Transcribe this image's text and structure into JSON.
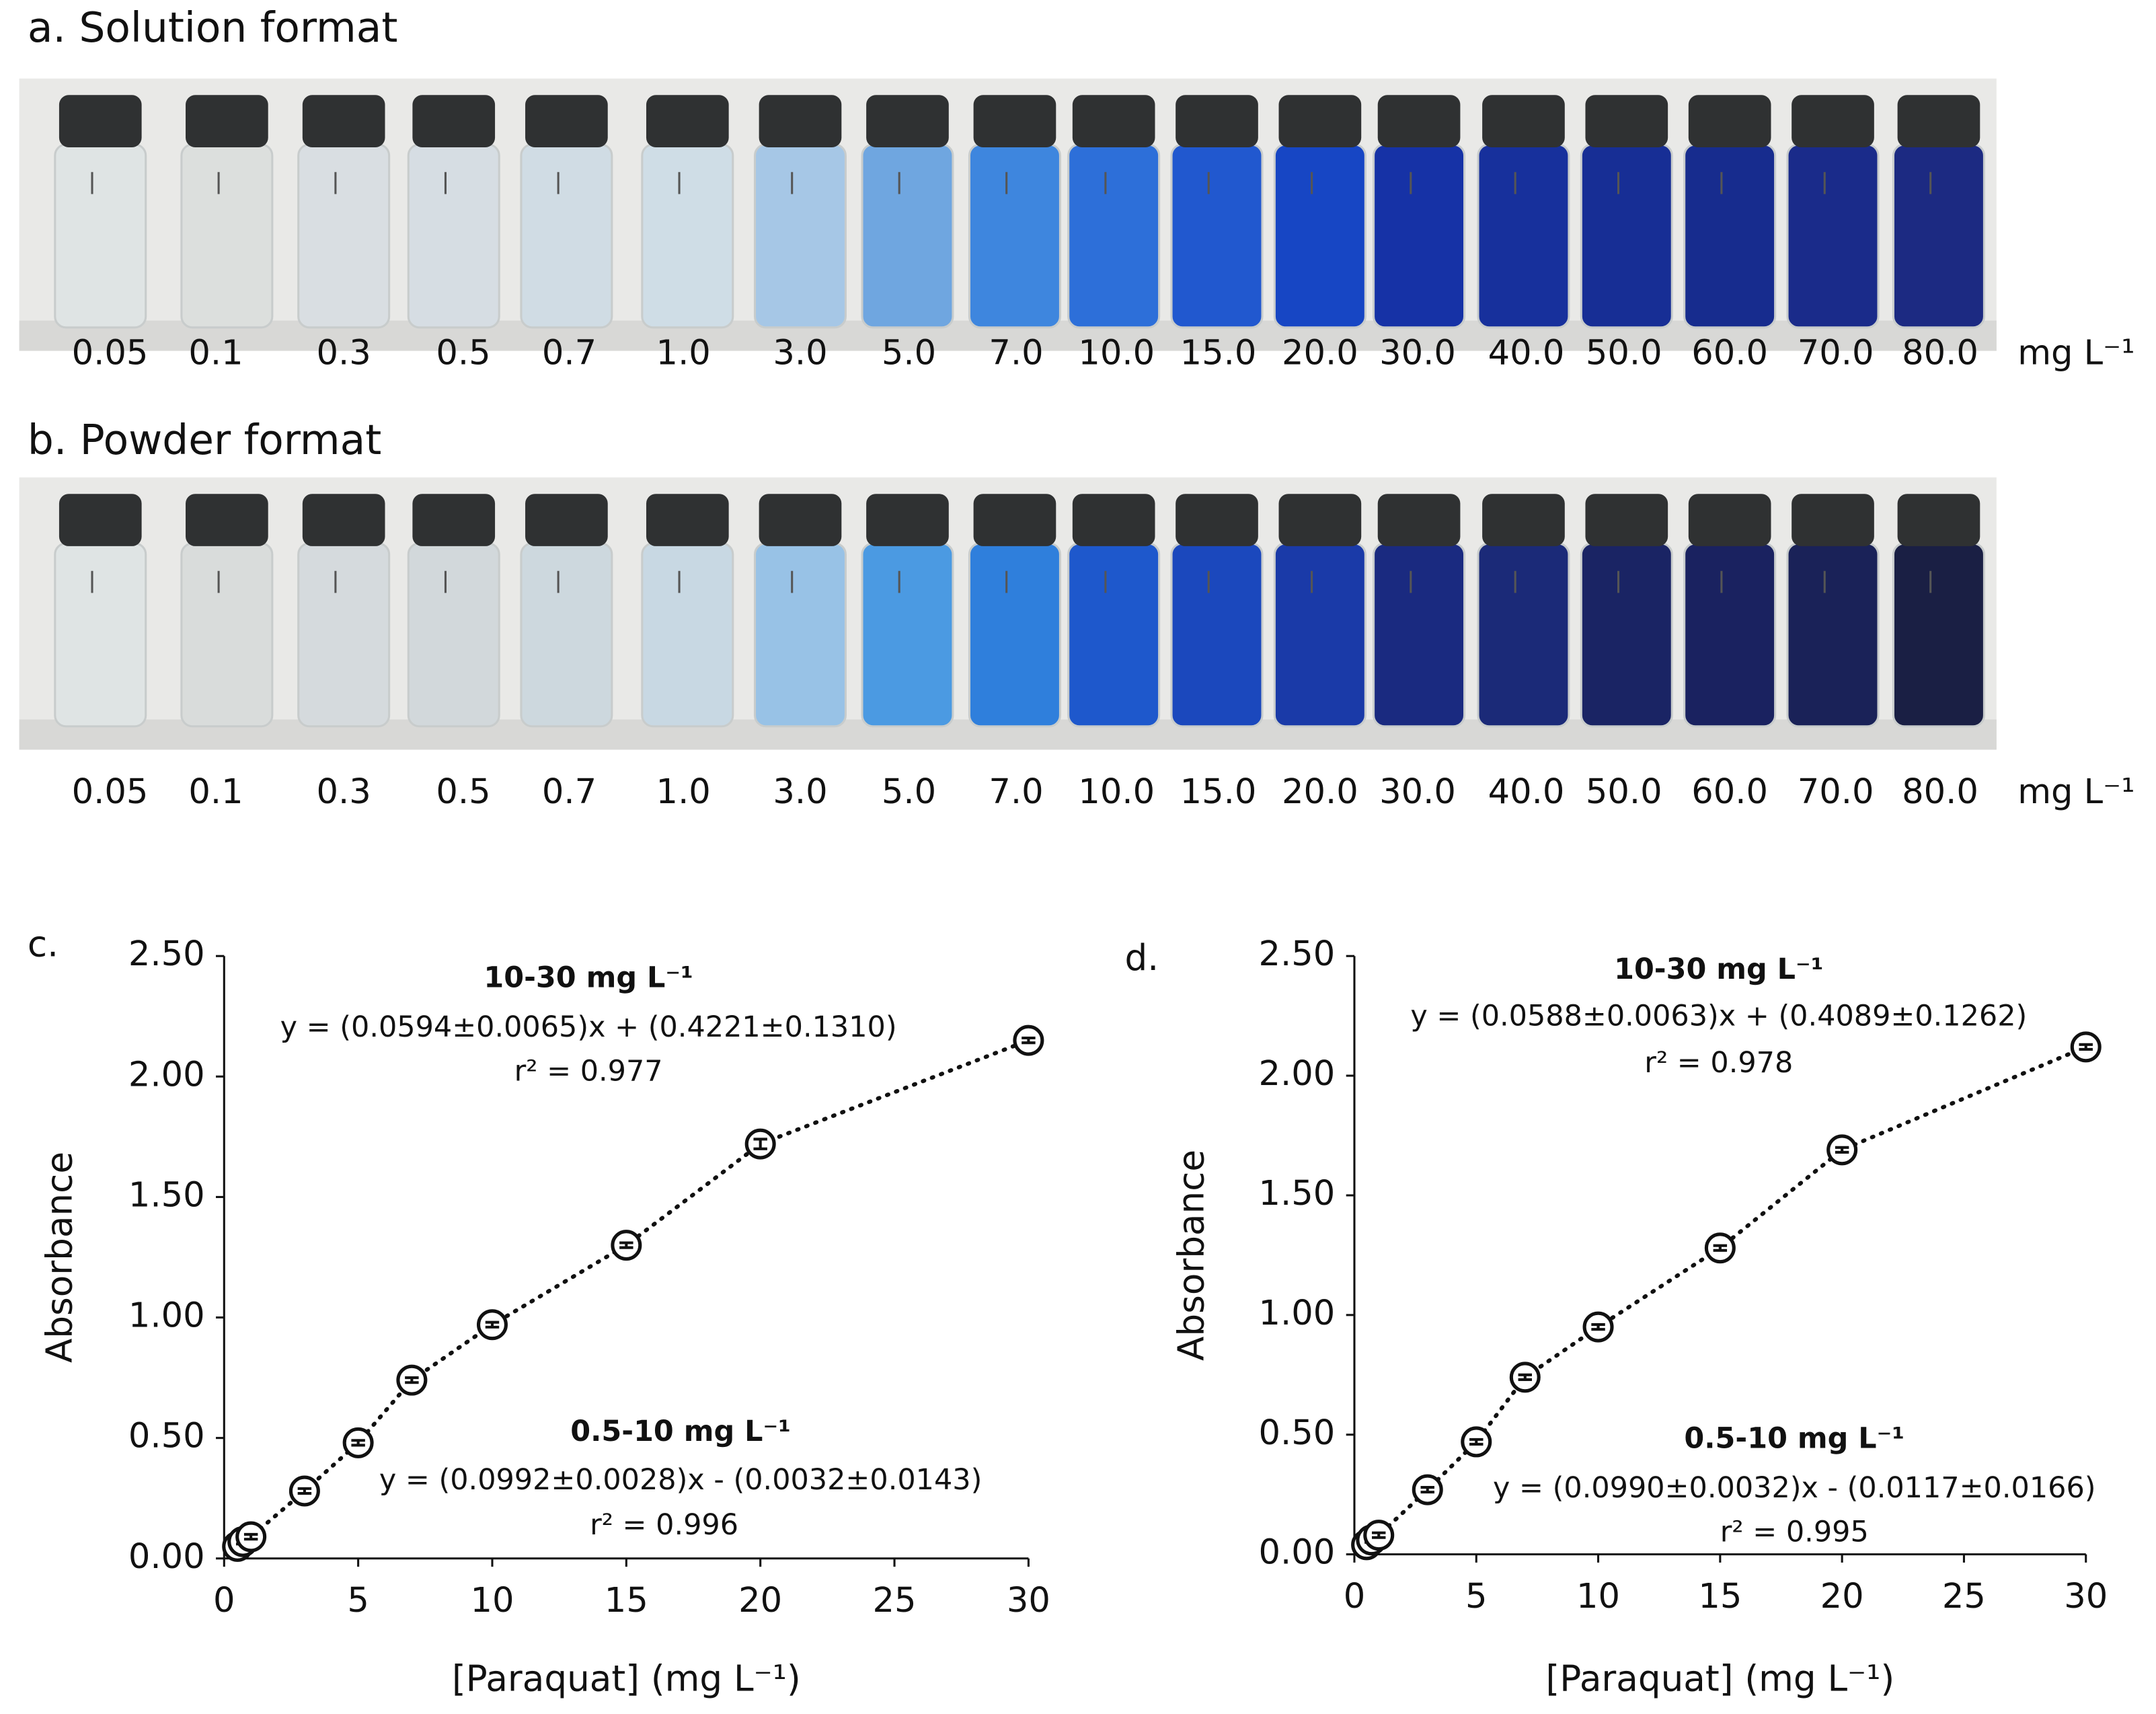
{
  "panels": [
    {
      "title": "a. Solution format",
      "labels": [
        "0.05",
        "0.1",
        "0.3",
        "0.5",
        "0.7",
        "1.0",
        "3.0",
        "5.0",
        "7.0",
        "10.0",
        "15.0",
        "20.0",
        "30.0",
        "40.0",
        "50.0",
        "60.0",
        "70.0",
        "80.0"
      ],
      "unit": "mg L⁻¹"
    },
    {
      "title": "b. Powder format",
      "labels": [
        "0.05",
        "0.1",
        "0.3",
        "0.5",
        "0.7",
        "1.0",
        "3.0",
        "5.0",
        "7.0",
        "10.0",
        "15.0",
        "20.0",
        "30.0",
        "40.0",
        "50.0",
        "60.0",
        "70.0",
        "80.0"
      ],
      "unit": "mg L⁻¹"
    }
  ],
  "chart_data": [
    {
      "type": "scatter",
      "panel_label": "c.",
      "xlabel": "[Paraquat] (mg L⁻¹)",
      "ylabel": "Absorbance",
      "x": [
        0.5,
        0.7,
        1.0,
        3,
        5,
        7,
        10,
        15,
        20,
        30
      ],
      "values": [
        0.05,
        0.07,
        0.09,
        0.28,
        0.48,
        0.74,
        0.97,
        1.3,
        1.72,
        2.15
      ],
      "errors": [
        0.01,
        0.01,
        0.01,
        0.01,
        0.01,
        0.01,
        0.01,
        0.01,
        0.02,
        0.01
      ],
      "xlim": [
        0,
        30
      ],
      "xticks": [
        0,
        5,
        10,
        15,
        20,
        25,
        30
      ],
      "ylim": [
        0,
        2.5
      ],
      "yticks": [
        {
          "value": 0,
          "label": "0.00"
        },
        {
          "value": 0.5,
          "label": "0.50"
        },
        {
          "value": 1,
          "label": "1.00"
        },
        {
          "value": 1.5,
          "label": "1.50"
        },
        {
          "value": 2,
          "label": "2.00"
        },
        {
          "value": 2.5,
          "label": "2.50"
        }
      ],
      "annotations": [
        {
          "text": "10-30 mg L⁻¹",
          "bold": true
        },
        {
          "text": "y = (0.0594±0.0065)x + (0.4221±0.1310)",
          "bold": false
        },
        {
          "text": "r² = 0.977",
          "bold": false
        },
        {
          "text": "0.5-10 mg L⁻¹",
          "bold": true
        },
        {
          "text": "y = (0.0992±0.0028)x  - (0.0032±0.0143)",
          "bold": false
        },
        {
          "text": "r² = 0.996",
          "bold": false
        }
      ],
      "color": "#111111",
      "grid": false
    },
    {
      "type": "scatter",
      "panel_label": "d.",
      "xlabel": "[Paraquat] (mg L⁻¹)",
      "ylabel": "Absorbance",
      "x": [
        0.5,
        0.7,
        1.0,
        3,
        5,
        7,
        10,
        15,
        20,
        30
      ],
      "values": [
        0.04,
        0.06,
        0.08,
        0.27,
        0.47,
        0.74,
        0.95,
        1.28,
        1.69,
        2.12
      ],
      "errors": [
        0.01,
        0.01,
        0.01,
        0.01,
        0.01,
        0.01,
        0.01,
        0.01,
        0.01,
        0.01
      ],
      "xlim": [
        0,
        30
      ],
      "xticks": [
        0,
        5,
        10,
        15,
        20,
        25,
        30
      ],
      "ylim": [
        0,
        2.5
      ],
      "yticks": [
        {
          "value": 0,
          "label": "0.00"
        },
        {
          "value": 0.5,
          "label": "0.50"
        },
        {
          "value": 1,
          "label": "1.00"
        },
        {
          "value": 1.5,
          "label": "1.50"
        },
        {
          "value": 2,
          "label": "2.00"
        },
        {
          "value": 2.5,
          "label": "2.50"
        }
      ],
      "annotations": [
        {
          "text": "10-30 mg L⁻¹",
          "bold": true
        },
        {
          "text": "y = (0.0588±0.0063)x + (0.4089±0.1262)",
          "bold": false
        },
        {
          "text": "r² = 0.978",
          "bold": false
        },
        {
          "text": "0.5-10 mg L⁻¹",
          "bold": true
        },
        {
          "text": "y = (0.0990±0.0032)x  - (0.0117±0.0166)",
          "bold": false
        },
        {
          "text": "r² = 0.995",
          "bold": false
        }
      ],
      "color": "#111111",
      "grid": false
    }
  ]
}
